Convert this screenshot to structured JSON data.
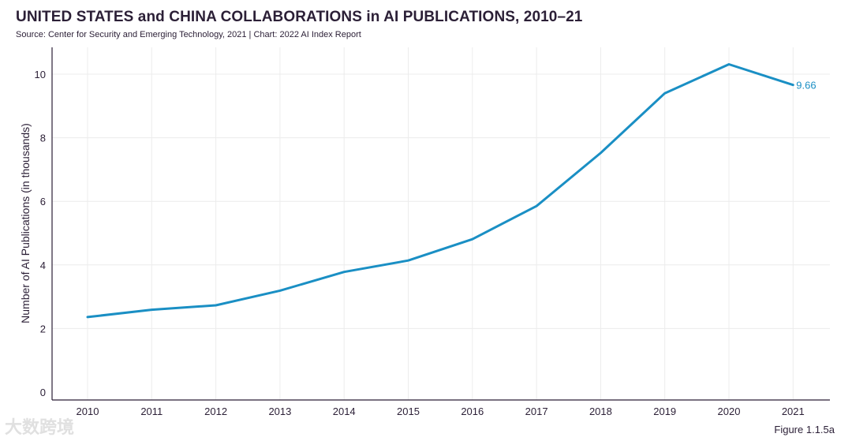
{
  "header": {
    "title": "UNITED STATES and CHINA COLLABORATIONS in AI PUBLICATIONS, 2010–21",
    "source": "Source: Center for Security and Emerging Technology, 2021 | Chart: 2022 AI Index Report"
  },
  "footer": {
    "figure_label": "Figure 1.1.5a",
    "watermark": "大数跨境"
  },
  "colors": {
    "line": "#1a8fc4",
    "text": "#2b1f36",
    "grid": "#ececec"
  },
  "chart_data": {
    "type": "line",
    "title": "UNITED STATES and CHINA COLLABORATIONS in AI PUBLICATIONS, 2010–21",
    "xlabel": "",
    "ylabel": "Number of AI Publications (in thousands)",
    "categories": [
      "2010",
      "2011",
      "2012",
      "2013",
      "2014",
      "2015",
      "2016",
      "2017",
      "2018",
      "2019",
      "2020",
      "2021"
    ],
    "series": [
      {
        "name": "",
        "values": [
          2.36,
          2.59,
          2.73,
          3.19,
          3.78,
          4.14,
          4.81,
          5.85,
          7.52,
          9.4,
          10.31,
          9.66
        ]
      }
    ],
    "end_label": "9.66",
    "yticks": [
      0,
      2,
      4,
      6,
      8,
      10
    ],
    "ylim": [
      0,
      10.8
    ],
    "grid": true
  }
}
